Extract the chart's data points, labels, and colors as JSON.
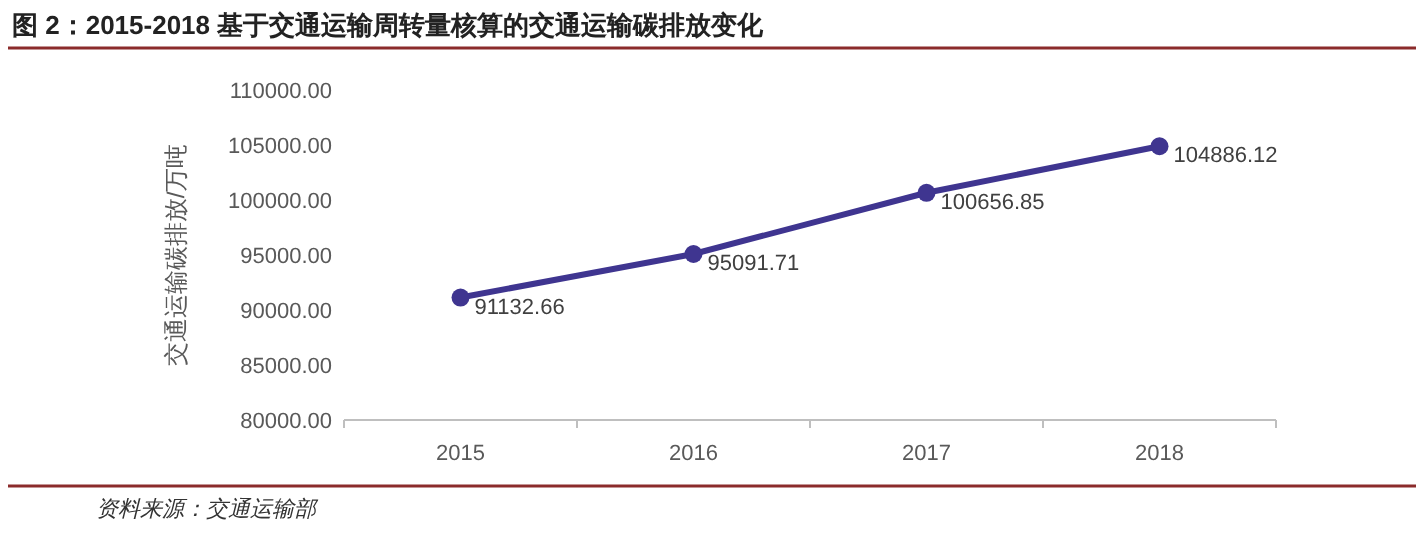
{
  "chart_data": {
    "type": "line",
    "title": "图 2：2015-2018 基于交通运输周转量核算的交通运输碳排放变化",
    "ylabel": "交通运输碳排放/万吨",
    "annotations": [
      "资料来源：交通运输部"
    ],
    "categories": [
      "2015",
      "2016",
      "2017",
      "2018"
    ],
    "series": [
      {
        "color": "#3f3590",
        "values": [
          91132.66,
          95091.71,
          100656.85,
          104886.12
        ]
      }
    ],
    "ylim": [
      80000,
      110000
    ],
    "yticks": [
      {
        "value": 80000,
        "label": "80000.00"
      },
      {
        "value": 85000,
        "label": "85000.00"
      },
      {
        "value": 90000,
        "label": "90000.00"
      },
      {
        "value": 95000,
        "label": "95000.00"
      },
      {
        "value": 100000,
        "label": "100000.00"
      },
      {
        "value": 105000,
        "label": "105000.00"
      },
      {
        "value": 110000,
        "label": "110000.00"
      }
    ],
    "marker": "circle",
    "line_style": "solid",
    "grid": false,
    "data_labels": true
  }
}
